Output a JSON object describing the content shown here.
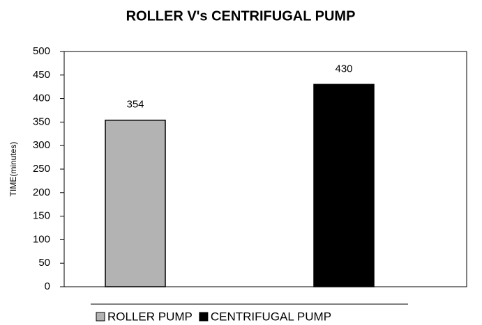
{
  "chart_data": {
    "type": "bar",
    "title": "ROLLER V's CENTRIFUGAL PUMP",
    "y_label": "TIME(minutes)",
    "categories": [
      null,
      null
    ],
    "series": [
      {
        "name": "ROLLER PUMP",
        "color": "#b3b3b3",
        "values": [
          354,
          null
        ]
      },
      {
        "name": "CENTRIFUGAL PUMP",
        "color": "#000000",
        "values": [
          0,
          430
        ]
      }
    ],
    "data_labels": [
      [
        354,
        null
      ],
      [
        null,
        430
      ]
    ],
    "ylim": [
      0,
      500
    ],
    "yticks": [
      0,
      50,
      100,
      150,
      200,
      250,
      300,
      350,
      400,
      450,
      500
    ],
    "grid": false,
    "legend": "bottom"
  }
}
